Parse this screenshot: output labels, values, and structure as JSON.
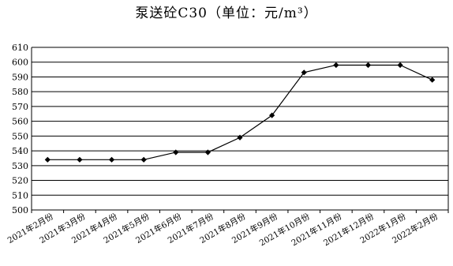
{
  "chart_data": {
    "type": "line",
    "title": "泵送砼C30（单位：元/m³）",
    "categories": [
      "2021年2月份",
      "2021年3月份",
      "2021年4月份",
      "2021年5月份",
      "2021年6月份",
      "2021年7月份",
      "2021年8月份",
      "2021年9月份",
      "2021年10月份",
      "2021年11月份",
      "2021年12月份",
      "2022年1月份",
      "2022年2月份"
    ],
    "series": [
      {
        "values": [
          534,
          534,
          534,
          534,
          539,
          539,
          549,
          564,
          593,
          598,
          598,
          598,
          588
        ]
      }
    ],
    "ylim": [
      500,
      610
    ],
    "yticks": [
      500,
      510,
      520,
      530,
      540,
      550,
      560,
      570,
      580,
      590,
      600,
      610
    ],
    "grid": true,
    "xlabel": "",
    "ylabel": "",
    "colors": {
      "line": "#000000",
      "grid": "#000000"
    }
  }
}
